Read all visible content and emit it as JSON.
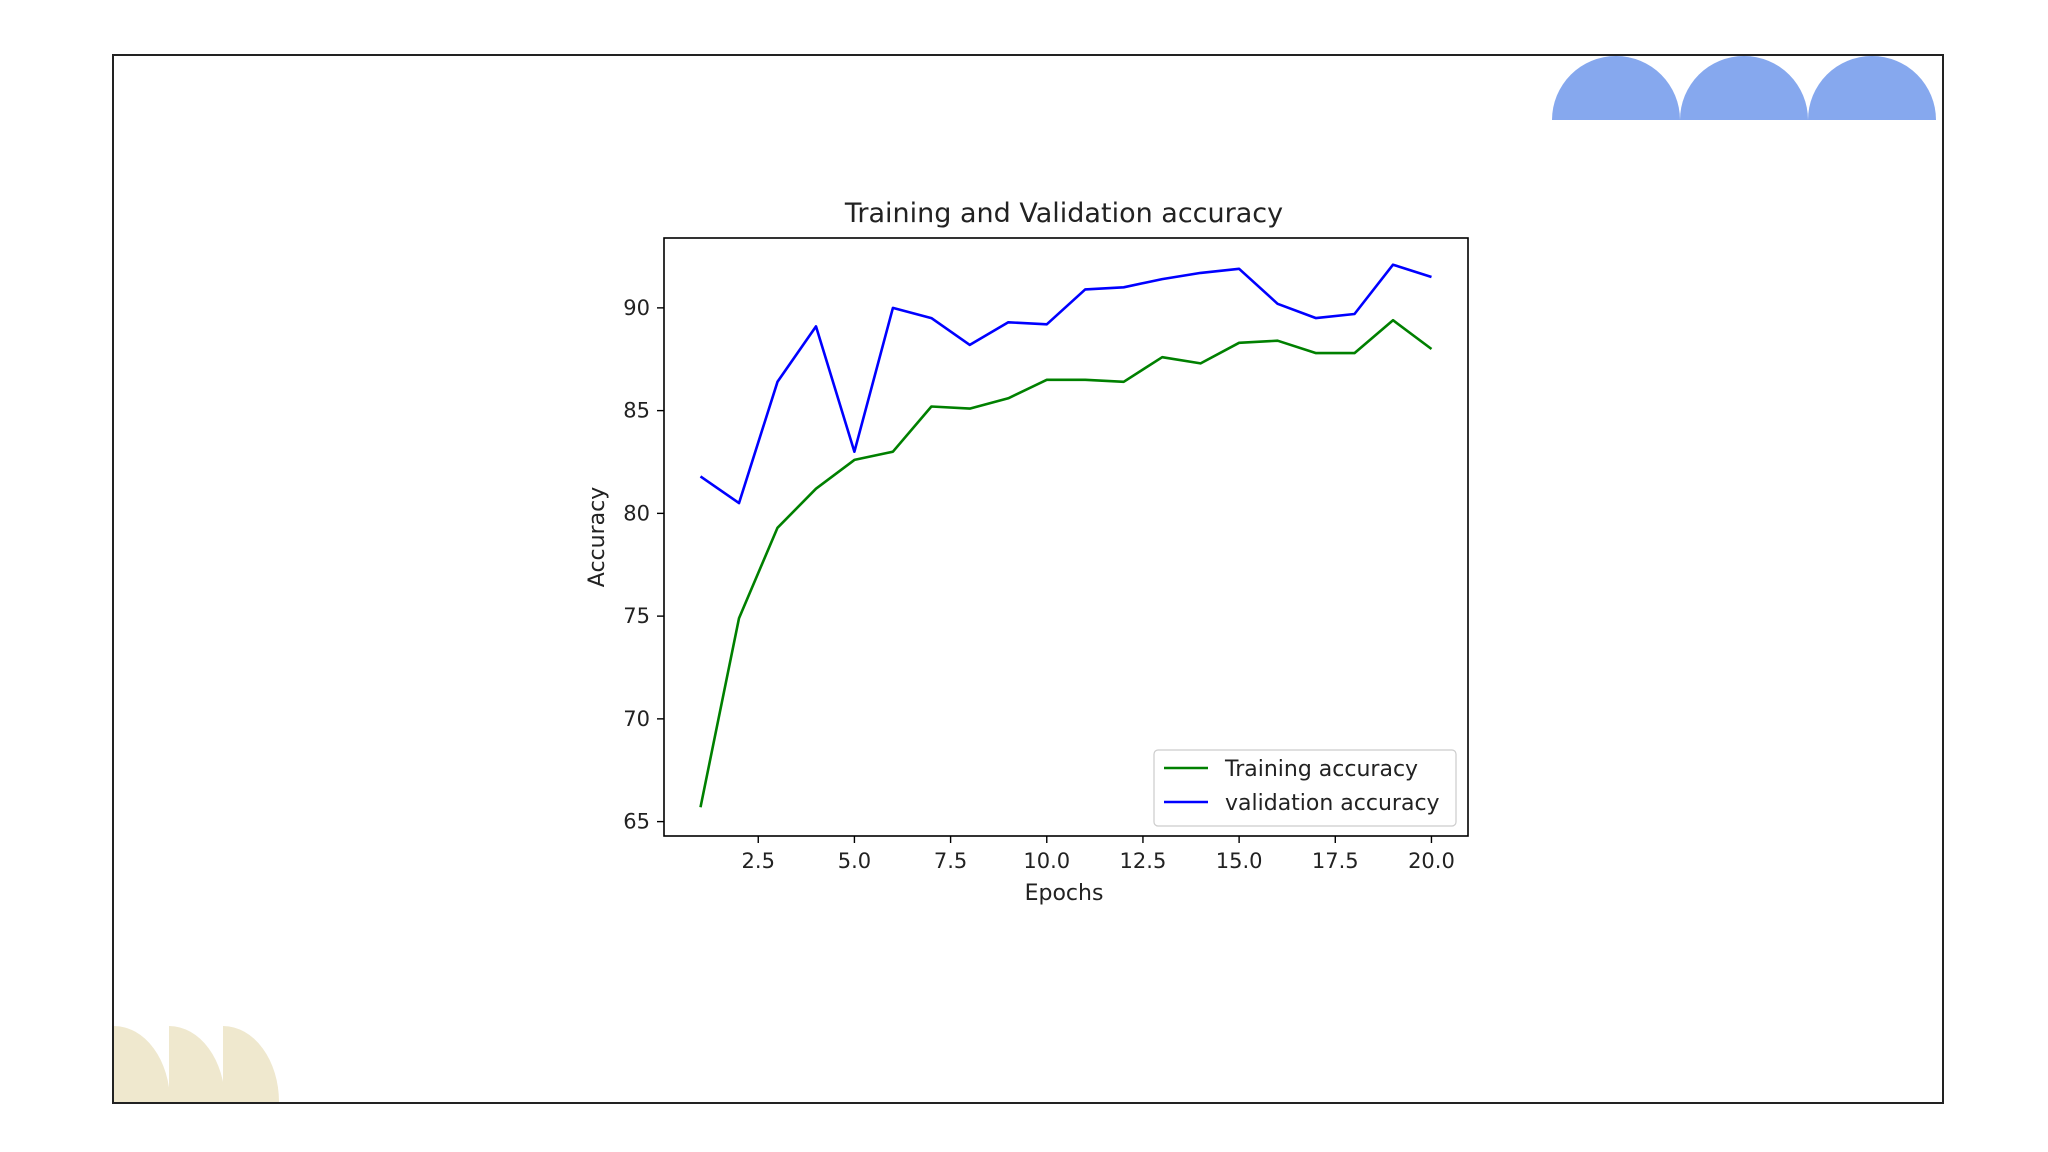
{
  "colors": {
    "decor_top": "#86a8ee",
    "decor_bottom": "#efe8ce",
    "frame_border": "#222222"
  },
  "chart_data": {
    "type": "line",
    "title": "Training and Validation accuracy",
    "xlabel": "Epochs",
    "ylabel": "Accuracy",
    "x": [
      1,
      2,
      3,
      4,
      5,
      6,
      7,
      8,
      9,
      10,
      11,
      12,
      13,
      14,
      15,
      16,
      17,
      18,
      19,
      20
    ],
    "xlim": [
      0.05,
      20.95
    ],
    "ylim": [
      64.3,
      93.4
    ],
    "xticks": [
      2.5,
      5.0,
      7.5,
      10.0,
      12.5,
      15.0,
      17.5,
      20.0
    ],
    "xtick_labels": [
      "2.5",
      "5.0",
      "7.5",
      "10.0",
      "12.5",
      "15.0",
      "17.5",
      "20.0"
    ],
    "yticks": [
      65,
      70,
      75,
      80,
      85,
      90
    ],
    "ytick_labels": [
      "65",
      "70",
      "75",
      "80",
      "85",
      "90"
    ],
    "grid": false,
    "legend_position": "lower-right",
    "series": [
      {
        "name": "Training accuracy",
        "color": "#008000",
        "values": [
          65.7,
          74.9,
          79.3,
          81.2,
          82.6,
          83.0,
          85.2,
          85.1,
          85.6,
          86.5,
          86.5,
          86.4,
          87.6,
          87.3,
          88.3,
          88.4,
          87.8,
          87.8,
          89.4,
          88.0
        ]
      },
      {
        "name": "validation accuracy",
        "color": "#0000ff",
        "values": [
          81.8,
          80.5,
          86.4,
          89.1,
          83.0,
          90.0,
          89.5,
          88.2,
          89.3,
          89.2,
          90.9,
          91.0,
          91.4,
          91.7,
          91.9,
          90.2,
          89.5,
          89.7,
          92.1,
          91.5
        ]
      }
    ]
  }
}
